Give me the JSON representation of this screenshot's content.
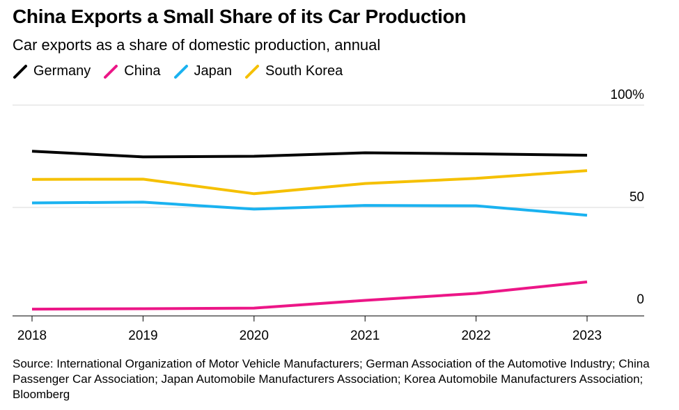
{
  "title": "China Exports a Small Share of its Car Production",
  "subtitle": "Car exports as a share of domestic production, annual",
  "source": "Source: International Organization of Motor Vehicle Manufacturers; German Association of the Automotive Industry; China Passenger Car Association; Japan Automobile Manufacturers Association; Korea Automobile Manufacturers Association; Bloomberg",
  "colors": {
    "germany": "#000000",
    "china": "#ec1687",
    "japan": "#1ab2f0",
    "south_korea": "#f5c000",
    "grid": "#d9d9d9",
    "axis": "#000000"
  },
  "chart_data": {
    "type": "line",
    "title": "China Exports a Small Share of its Car Production",
    "subtitle": "Car exports as a share of domestic production, annual",
    "x": [
      2018,
      2019,
      2020,
      2021,
      2022,
      2023
    ],
    "x_tick_labels": [
      "2018",
      "2019",
      "2020",
      "2021",
      "2022",
      "2023"
    ],
    "y_tick_values": [
      100,
      50,
      0
    ],
    "y_tick_labels": [
      "100%",
      "50",
      "0"
    ],
    "ylim": [
      -3,
      100
    ],
    "y_axis_side": "right",
    "grid": "horizontal",
    "legend_position": "top-left",
    "series": [
      {
        "name": "Germany",
        "color": "#000000",
        "values": [
          77.5,
          74.7,
          75.0,
          76.7,
          76.2,
          75.5
        ]
      },
      {
        "name": "China",
        "color": "#ec1687",
        "values": [
          0.3,
          0.5,
          0.8,
          4.6,
          8.0,
          13.6
        ]
      },
      {
        "name": "Japan",
        "color": "#1ab2f0",
        "values": [
          52.2,
          52.6,
          49.2,
          51.0,
          50.8,
          46.2
        ]
      },
      {
        "name": "South Korea",
        "color": "#f5c000",
        "values": [
          63.7,
          63.8,
          56.7,
          61.7,
          64.2,
          68.0
        ]
      }
    ]
  }
}
